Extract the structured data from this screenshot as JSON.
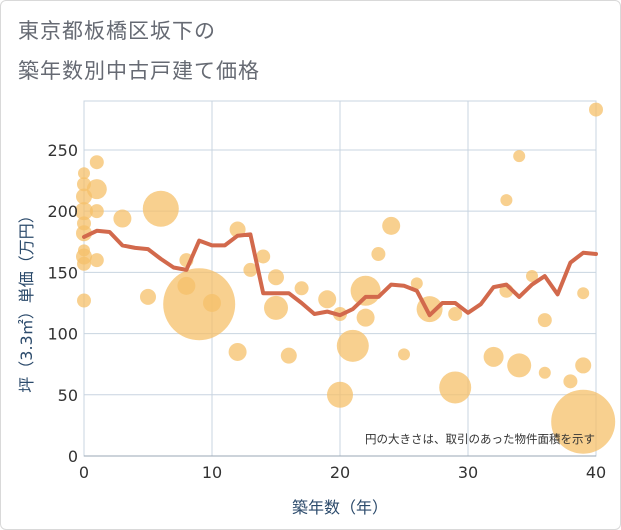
{
  "title_lines": [
    "東京都板橋区坂下の",
    "築年数別中古戸建て価格"
  ],
  "colors": {
    "bubble": "#f5c06a",
    "line": "#d2694c",
    "grid": "#c8d4e0",
    "axis_text": "#2b4a6b"
  },
  "chart_data": {
    "type": "scatter",
    "xlabel": "築年数（年）",
    "ylabel": "坪（3.3㎡）単価（万円）",
    "xlim": [
      0,
      40
    ],
    "ylim": [
      0,
      290
    ],
    "x_ticks": [
      0,
      10,
      20,
      30,
      40
    ],
    "y_ticks": [
      0,
      50,
      100,
      150,
      200,
      250
    ],
    "annotation": "円の大きさは、取引のあった物件面積を示す",
    "bubbles": [
      {
        "x": 0,
        "y": 127,
        "r": 7
      },
      {
        "x": 0,
        "y": 157,
        "r": 7
      },
      {
        "x": 0,
        "y": 163,
        "r": 8
      },
      {
        "x": 0,
        "y": 168,
        "r": 6
      },
      {
        "x": 0,
        "y": 182,
        "r": 8
      },
      {
        "x": 0,
        "y": 190,
        "r": 7
      },
      {
        "x": 0,
        "y": 200,
        "r": 9
      },
      {
        "x": 0,
        "y": 212,
        "r": 8
      },
      {
        "x": 0,
        "y": 222,
        "r": 7
      },
      {
        "x": 0,
        "y": 231,
        "r": 6
      },
      {
        "x": 1,
        "y": 240,
        "r": 7
      },
      {
        "x": 1,
        "y": 218,
        "r": 10
      },
      {
        "x": 1,
        "y": 200,
        "r": 7
      },
      {
        "x": 1,
        "y": 160,
        "r": 7
      },
      {
        "x": 3,
        "y": 194,
        "r": 9
      },
      {
        "x": 5,
        "y": 130,
        "r": 8
      },
      {
        "x": 6,
        "y": 202,
        "r": 18
      },
      {
        "x": 8,
        "y": 160,
        "r": 7
      },
      {
        "x": 8,
        "y": 139,
        "r": 9
      },
      {
        "x": 9,
        "y": 124,
        "r": 36
      },
      {
        "x": 10,
        "y": 125,
        "r": 9
      },
      {
        "x": 12,
        "y": 185,
        "r": 8
      },
      {
        "x": 12,
        "y": 85,
        "r": 9
      },
      {
        "x": 13,
        "y": 152,
        "r": 7
      },
      {
        "x": 14,
        "y": 163,
        "r": 7
      },
      {
        "x": 15,
        "y": 146,
        "r": 8
      },
      {
        "x": 15,
        "y": 121,
        "r": 12
      },
      {
        "x": 16,
        "y": 82,
        "r": 8
      },
      {
        "x": 17,
        "y": 137,
        "r": 7
      },
      {
        "x": 19,
        "y": 128,
        "r": 9
      },
      {
        "x": 20,
        "y": 116,
        "r": 7
      },
      {
        "x": 20,
        "y": 50,
        "r": 13
      },
      {
        "x": 21,
        "y": 90,
        "r": 16
      },
      {
        "x": 22,
        "y": 135,
        "r": 15
      },
      {
        "x": 22,
        "y": 113,
        "r": 9
      },
      {
        "x": 23,
        "y": 165,
        "r": 7
      },
      {
        "x": 24,
        "y": 188,
        "r": 9
      },
      {
        "x": 25,
        "y": 83,
        "r": 6
      },
      {
        "x": 26,
        "y": 141,
        "r": 6
      },
      {
        "x": 27,
        "y": 120,
        "r": 13
      },
      {
        "x": 29,
        "y": 56,
        "r": 16
      },
      {
        "x": 29,
        "y": 116,
        "r": 7
      },
      {
        "x": 32,
        "y": 81,
        "r": 10
      },
      {
        "x": 33,
        "y": 209,
        "r": 6
      },
      {
        "x": 33,
        "y": 135,
        "r": 7
      },
      {
        "x": 34,
        "y": 245,
        "r": 6
      },
      {
        "x": 34,
        "y": 74,
        "r": 12
      },
      {
        "x": 35,
        "y": 147,
        "r": 6
      },
      {
        "x": 36,
        "y": 111,
        "r": 7
      },
      {
        "x": 36,
        "y": 68,
        "r": 6
      },
      {
        "x": 38,
        "y": 61,
        "r": 7
      },
      {
        "x": 39,
        "y": 133,
        "r": 6
      },
      {
        "x": 39,
        "y": 74,
        "r": 8
      },
      {
        "x": 39,
        "y": 28,
        "r": 32
      },
      {
        "x": 40,
        "y": 283,
        "r": 7
      }
    ],
    "series": [
      {
        "type": "line",
        "x": [
          0,
          1,
          2,
          3,
          4,
          5,
          6,
          7,
          8,
          9,
          10,
          11,
          12,
          13,
          14,
          15,
          16,
          17,
          18,
          19,
          20,
          21,
          22,
          23,
          24,
          25,
          26,
          27,
          28,
          29,
          30,
          31,
          32,
          33,
          34,
          35,
          36,
          37,
          38,
          39,
          40
        ],
        "y": [
          179,
          184,
          183,
          172,
          170,
          169,
          161,
          154,
          152,
          176,
          172,
          172,
          180,
          181,
          133,
          133,
          133,
          125,
          116,
          118,
          115,
          120,
          130,
          130,
          140,
          139,
          135,
          115,
          125,
          125,
          117,
          124,
          138,
          140,
          130,
          140,
          147,
          132,
          158,
          166,
          165
        ]
      }
    ]
  }
}
